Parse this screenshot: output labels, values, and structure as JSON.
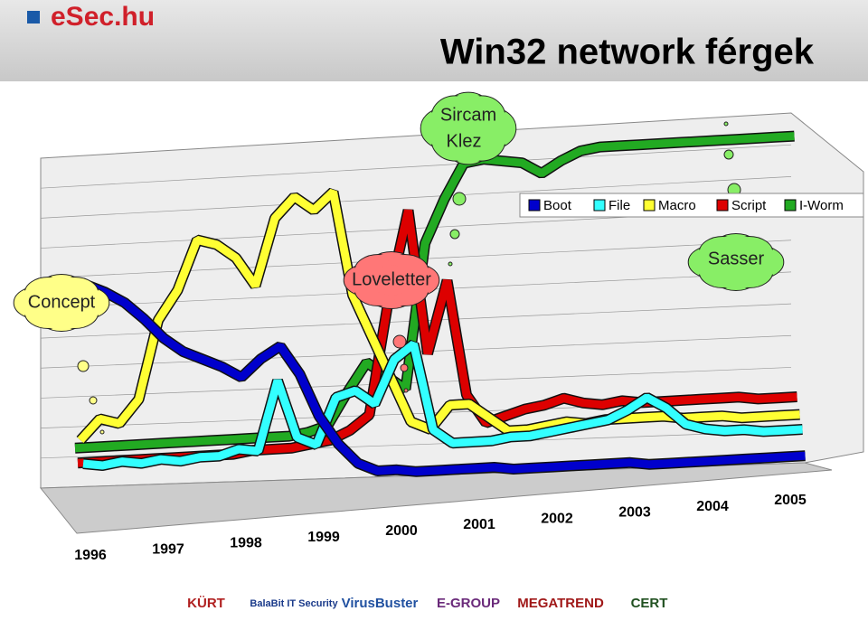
{
  "logo": "eSec.hu",
  "sponsors": [
    "KÜRT",
    "BalaBit IT Security",
    "VirusBuster",
    "E-GROUP",
    "MEGATREND",
    "CERT"
  ],
  "chart_data": {
    "type": "line",
    "title": "Win32 network férgek",
    "categories": [
      "1996",
      null,
      null,
      null,
      "1997",
      null,
      null,
      null,
      "1998",
      null,
      null,
      null,
      "1999",
      null,
      null,
      null,
      "2000",
      null,
      null,
      null,
      "2001",
      null,
      null,
      null,
      "2002",
      null,
      null,
      null,
      "2003",
      null,
      null,
      null,
      "2004",
      null,
      null,
      null,
      "2005",
      null
    ],
    "ylim": [
      0,
      100
    ],
    "legend": "top-right",
    "annotations": [
      "Concept",
      "Loveletter",
      "Sircam",
      "Klez",
      "Sasser"
    ],
    "series": [
      {
        "name": "Boot",
        "color": "#0000cc",
        "values": [
          75,
          72,
          68,
          62,
          55,
          50,
          47,
          44,
          40,
          46,
          50,
          40,
          25,
          15,
          8,
          5,
          5,
          4,
          4,
          4,
          4,
          4,
          3,
          3,
          3,
          3,
          3,
          3,
          3,
          2,
          2,
          2,
          2,
          2,
          2,
          2,
          2,
          2
        ]
      },
      {
        "name": "File",
        "color": "#33ffff",
        "values": [
          10,
          9,
          10,
          9,
          10,
          9,
          10,
          10,
          12,
          11,
          35,
          15,
          12,
          28,
          30,
          25,
          40,
          45,
          15,
          10,
          10,
          10,
          11,
          11,
          12,
          13,
          14,
          15,
          18,
          22,
          18,
          12,
          10,
          9,
          9,
          8,
          8,
          8
        ]
      },
      {
        "name": "Macro",
        "color": "#ffff33",
        "values": [
          15,
          22,
          20,
          28,
          55,
          65,
          82,
          80,
          75,
          65,
          88,
          95,
          90,
          96,
          60,
          45,
          30,
          15,
          12,
          20,
          20,
          15,
          10,
          10,
          11,
          12,
          11,
          12,
          12,
          12,
          12,
          11,
          11,
          11,
          10,
          10,
          10,
          10
        ]
      },
      {
        "name": "Script",
        "color": "#dd0000",
        "values": [
          4,
          4,
          4,
          4,
          4,
          4,
          4,
          4,
          4,
          5,
          5,
          5,
          6,
          7,
          10,
          15,
          55,
          85,
          35,
          60,
          20,
          10,
          12,
          14,
          15,
          17,
          15,
          14,
          15,
          14,
          14,
          14,
          14,
          14,
          14,
          13,
          13,
          13
        ]
      },
      {
        "name": "I-Worm",
        "color": "#22aa22",
        "values": [
          6,
          6,
          6,
          6,
          6,
          6,
          6,
          6,
          6,
          6,
          6,
          6,
          7,
          9,
          20,
          30,
          25,
          20,
          70,
          85,
          97,
          98,
          97,
          96,
          92,
          96,
          99,
          100,
          100,
          100,
          100,
          100,
          100,
          100,
          100,
          100,
          100,
          100
        ]
      }
    ]
  }
}
